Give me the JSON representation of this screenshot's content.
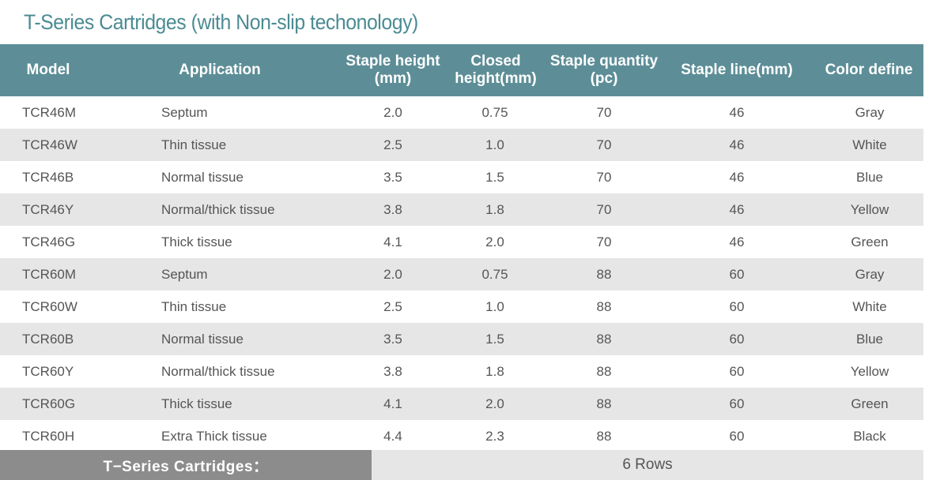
{
  "title": "T-Series Cartridges (with Non-slip techonology)",
  "header": {
    "model": "Model",
    "application": "Application",
    "staple_height": "Staple height\n(mm)",
    "closed_height": "Closed\nheight(mm)",
    "staple_quantity": "Staple quantity\n(pc)",
    "staple_line": "Staple line(mm)",
    "color_define": "Color define"
  },
  "rows": [
    {
      "model": "TCR46M",
      "application": "Septum",
      "staple_height": "2.0",
      "closed_height": "0.75",
      "staple_quantity": "70",
      "staple_line": "46",
      "color_define": "Gray"
    },
    {
      "model": "TCR46W",
      "application": "Thin tissue",
      "staple_height": "2.5",
      "closed_height": "1.0",
      "staple_quantity": "70",
      "staple_line": "46",
      "color_define": "White"
    },
    {
      "model": "TCR46B",
      "application": "Normal tissue",
      "staple_height": "3.5",
      "closed_height": "1.5",
      "staple_quantity": "70",
      "staple_line": "46",
      "color_define": "Blue"
    },
    {
      "model": "TCR46Y",
      "application": "Normal/thick tissue",
      "staple_height": "3.8",
      "closed_height": "1.8",
      "staple_quantity": "70",
      "staple_line": "46",
      "color_define": "Yellow"
    },
    {
      "model": "TCR46G",
      "application": "Thick tissue",
      "staple_height": "4.1",
      "closed_height": "2.0",
      "staple_quantity": "70",
      "staple_line": "46",
      "color_define": "Green"
    },
    {
      "model": "TCR60M",
      "application": "Septum",
      "staple_height": "2.0",
      "closed_height": "0.75",
      "staple_quantity": "88",
      "staple_line": "60",
      "color_define": "Gray"
    },
    {
      "model": "TCR60W",
      "application": "Thin tissue",
      "staple_height": "2.5",
      "closed_height": "1.0",
      "staple_quantity": "88",
      "staple_line": "60",
      "color_define": "White"
    },
    {
      "model": "TCR60B",
      "application": "Normal tissue",
      "staple_height": "3.5",
      "closed_height": "1.5",
      "staple_quantity": "88",
      "staple_line": "60",
      "color_define": "Blue"
    },
    {
      "model": "TCR60Y",
      "application": "Normal/thick tissue",
      "staple_height": "3.8",
      "closed_height": "1.8",
      "staple_quantity": "88",
      "staple_line": "60",
      "color_define": "Yellow"
    },
    {
      "model": "TCR60G",
      "application": "Thick tissue",
      "staple_height": "4.1",
      "closed_height": "2.0",
      "staple_quantity": "88",
      "staple_line": "60",
      "color_define": "Green"
    },
    {
      "model": "TCR60H",
      "application": "Extra Thick tissue",
      "staple_height": "4.4",
      "closed_height": "2.3",
      "staple_quantity": "88",
      "staple_line": "60",
      "color_define": "Black"
    }
  ],
  "footer": {
    "label": "T−Series Cartridges：",
    "value": "6 Rows"
  },
  "colors": {
    "title": "#4b8b93",
    "header_bg": "#5d8e97",
    "stripe": "#e6e6e6",
    "footer_label_bg": "#8c8c8c",
    "text": "#555555"
  }
}
